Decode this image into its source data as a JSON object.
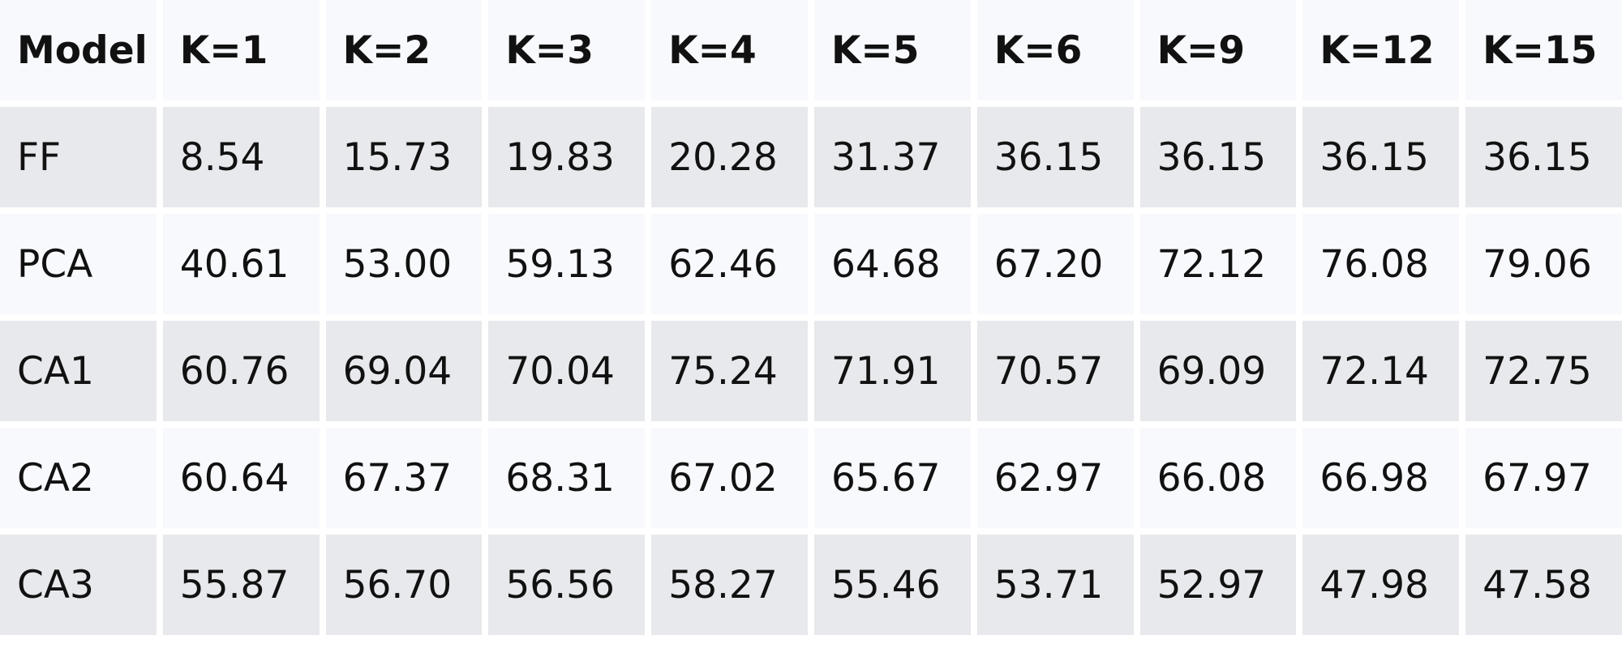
{
  "chart_data": {
    "type": "table",
    "columns": [
      "Model",
      "K=1",
      "K=2",
      "K=3",
      "K=4",
      "K=5",
      "K=6",
      "K=9",
      "K=12",
      "K=15"
    ],
    "rows": [
      [
        "FF",
        "8.54",
        "15.73",
        "19.83",
        "20.28",
        "31.37",
        "36.15",
        "36.15",
        "36.15",
        "36.15"
      ],
      [
        "PCA",
        "40.61",
        "53.00",
        "59.13",
        "62.46",
        "64.68",
        "67.20",
        "72.12",
        "76.08",
        "79.06"
      ],
      [
        "CA1",
        "60.76",
        "69.04",
        "70.04",
        "75.24",
        "71.91",
        "70.57",
        "69.09",
        "72.14",
        "72.75"
      ],
      [
        "CA2",
        "60.64",
        "67.37",
        "68.31",
        "67.02",
        "65.67",
        "62.97",
        "66.08",
        "66.98",
        "67.97"
      ],
      [
        "CA3",
        "55.87",
        "56.70",
        "56.56",
        "58.27",
        "55.46",
        "53.71",
        "52.97",
        "47.98",
        "47.58"
      ]
    ]
  },
  "colors": {
    "header_bg": "#f8f9fd",
    "row_odd_bg": "#e8e9ec",
    "row_even_bg": "#f8f9fd",
    "text": "#111111"
  }
}
